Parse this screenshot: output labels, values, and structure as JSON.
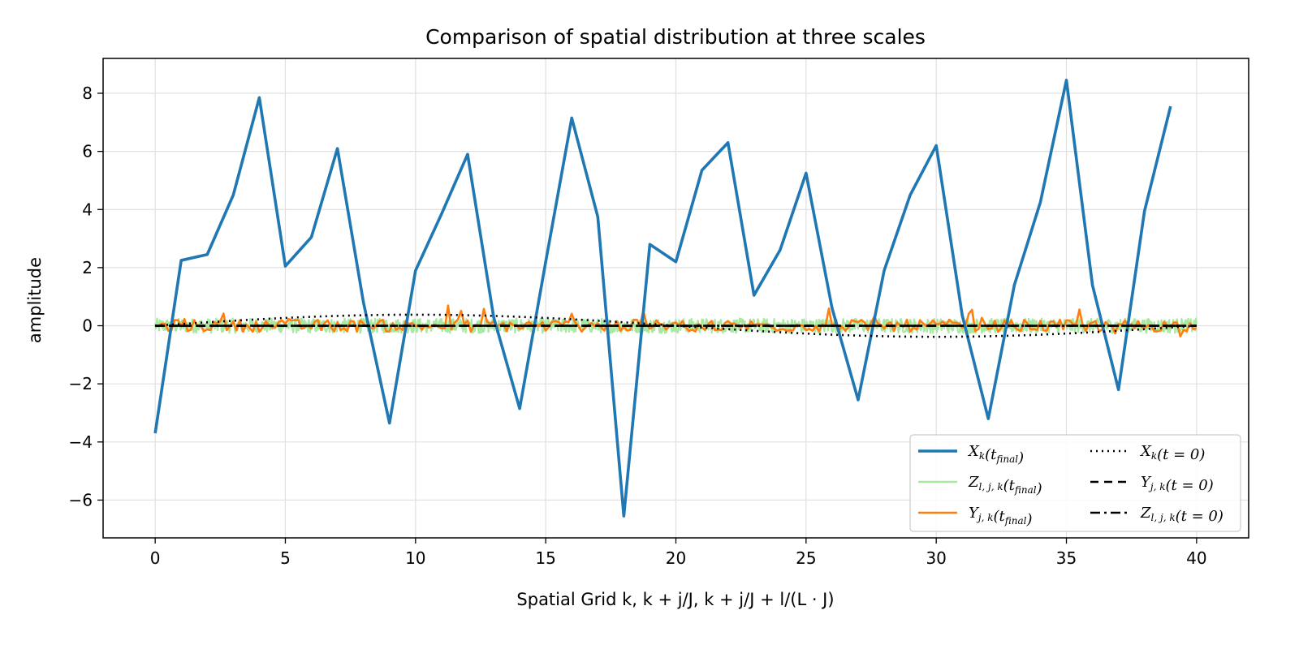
{
  "chart_data": {
    "type": "line",
    "title": "Comparison of spatial distribution at three scales",
    "xlabel": "Spatial Grid k,  k + j/J,  k + j/J + l/(L · J)",
    "ylabel": "amplitude",
    "xlim": [
      -2,
      42
    ],
    "ylim": [
      -7.3,
      9.2
    ],
    "xticks": [
      0,
      5,
      10,
      15,
      20,
      25,
      30,
      35,
      40
    ],
    "yticks": [
      -6,
      -4,
      -2,
      0,
      2,
      4,
      6,
      8
    ],
    "grid": true,
    "legend_position": "lower-right",
    "series": [
      {
        "name": "X_k(t_final)",
        "label_main": "X",
        "label_sub": "k",
        "label_rest": "(t",
        "label_sub2": "final",
        "label_end": ")",
        "color": "#1f77b4",
        "style": "solid",
        "x": [
          0,
          1,
          2,
          3,
          4,
          5,
          6,
          7,
          8,
          9,
          10,
          11,
          12,
          13,
          14,
          15,
          16,
          17,
          18,
          19,
          20,
          21,
          22,
          23,
          24,
          25,
          26,
          27,
          28,
          29,
          30,
          31,
          32,
          33,
          34,
          35,
          36,
          37,
          38,
          39
        ],
        "y": [
          -3.7,
          2.25,
          2.45,
          4.5,
          7.85,
          2.05,
          3.05,
          6.1,
          0.8,
          -3.35,
          1.9,
          3.85,
          5.9,
          0.3,
          -2.85,
          2.2,
          7.15,
          3.75,
          -6.55,
          2.8,
          2.2,
          5.35,
          6.3,
          1.05,
          2.6,
          5.25,
          0.6,
          -2.55,
          1.9,
          4.5,
          6.2,
          0.35,
          -3.2,
          1.4,
          4.25,
          8.45,
          1.4,
          -2.2,
          3.95,
          7.55
        ]
      },
      {
        "name": "Z_l,j,k(t_final)",
        "label_main": "Z",
        "label_sub": "l, j, k",
        "label_rest": "(t",
        "label_sub2": "final",
        "label_end": ")",
        "color": "#a8e8a0",
        "style": "noise",
        "x_range": [
          0,
          40
        ],
        "amplitude": 0.25
      },
      {
        "name": "Y_j,k(t_final)",
        "label_main": "Y",
        "label_sub": "j, k",
        "label_rest": "(t",
        "label_sub2": "final",
        "label_end": ")",
        "color": "#ff7f0e",
        "style": "noise",
        "x_range": [
          0,
          40
        ],
        "amplitude": 0.3
      },
      {
        "name": "X_k(t=0)",
        "label_main": "X",
        "label_sub": "k",
        "label_rest": "(t = 0)",
        "color": "#000000",
        "style": "dotted",
        "function": "0.38*sin(2*pi*x/40)"
      },
      {
        "name": "Y_j,k(t=0)",
        "label_main": "Y",
        "label_sub": "j, k",
        "label_rest": "(t = 0)",
        "color": "#000000",
        "style": "dashed",
        "function": "0"
      },
      {
        "name": "Z_l,j,k(t=0)",
        "label_main": "Z",
        "label_sub": "l, j, k",
        "label_rest": "(t = 0)",
        "color": "#000000",
        "style": "dashdot",
        "function": "0"
      }
    ]
  }
}
